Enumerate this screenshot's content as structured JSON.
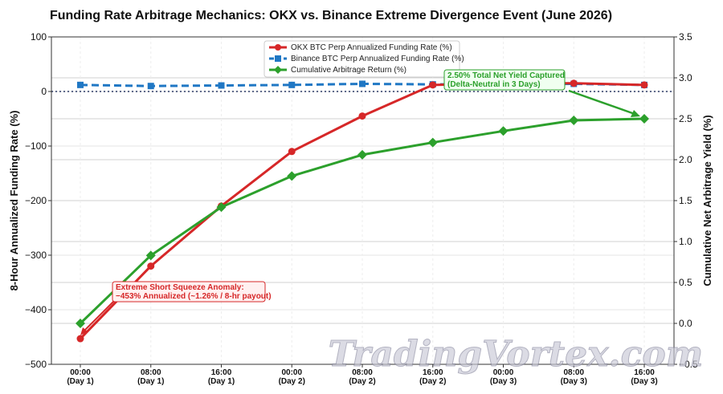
{
  "chart_data": {
    "type": "line",
    "title": "Funding Rate Arbitrage Mechanics: OKX vs. Binance Extreme Divergence Event (June 2026)",
    "ylabel_left": "8-Hour Annualized Funding Rate (%)",
    "ylabel_right": "Cumulative Net Arbitrage Yield (%)",
    "ylim_left": [
      -500,
      100
    ],
    "ylim_right": [
      -0.5,
      3.5
    ],
    "yticks_left": [
      "100",
      "0",
      "−100",
      "−200",
      "−300",
      "−400",
      "−500"
    ],
    "yticks_right": [
      "3.5",
      "3.0",
      "2.5",
      "2.0",
      "1.5",
      "1.0",
      "0.5",
      "0.0",
      "−0.5"
    ],
    "categories": [
      [
        "00:00",
        "(Day 1)"
      ],
      [
        "08:00",
        "(Day 1)"
      ],
      [
        "16:00",
        "(Day 1)"
      ],
      [
        "00:00",
        "(Day 2)"
      ],
      [
        "08:00",
        "(Day 2)"
      ],
      [
        "16:00",
        "(Day 2)"
      ],
      [
        "00:00",
        "(Day 3)"
      ],
      [
        "08:00",
        "(Day 3)"
      ],
      [
        "16:00",
        "(Day 3)"
      ]
    ],
    "series": [
      {
        "name": "OKX BTC Perp Annualized Funding Rate (%)",
        "axis": "left",
        "color": "#d62728",
        "style": "solid",
        "marker": "circle",
        "values": [
          -453,
          -320,
          -210,
          -110,
          -45,
          12,
          15,
          15,
          12
        ]
      },
      {
        "name": "Binance BTC Perp Annualized Funding Rate (%)",
        "axis": "left",
        "color": "#1f77c4",
        "style": "dashed",
        "marker": "square",
        "values": [
          12,
          10,
          11,
          12,
          14,
          13,
          13,
          14,
          12
        ]
      },
      {
        "name": "Cumulative Arbitrage Return (%)",
        "axis": "right",
        "color": "#2ca02c",
        "style": "solid",
        "marker": "diamond",
        "values": [
          0.0,
          0.83,
          1.42,
          1.8,
          2.06,
          2.21,
          2.35,
          2.48,
          2.5
        ]
      }
    ],
    "annotations": [
      {
        "lines": [
          "Extreme Short Squeeze Anomaly:",
          "−453% Annualized (~1.26% / 8-hr payout)"
        ],
        "color": "#d62728"
      },
      {
        "lines": [
          "2.50% Total Net Yield Captured",
          "(Delta-Neutral in 3 Days)"
        ],
        "color": "#2ca02c"
      }
    ],
    "legend_position": "top-center",
    "grid": true
  },
  "watermark": "TradingVortex.com"
}
